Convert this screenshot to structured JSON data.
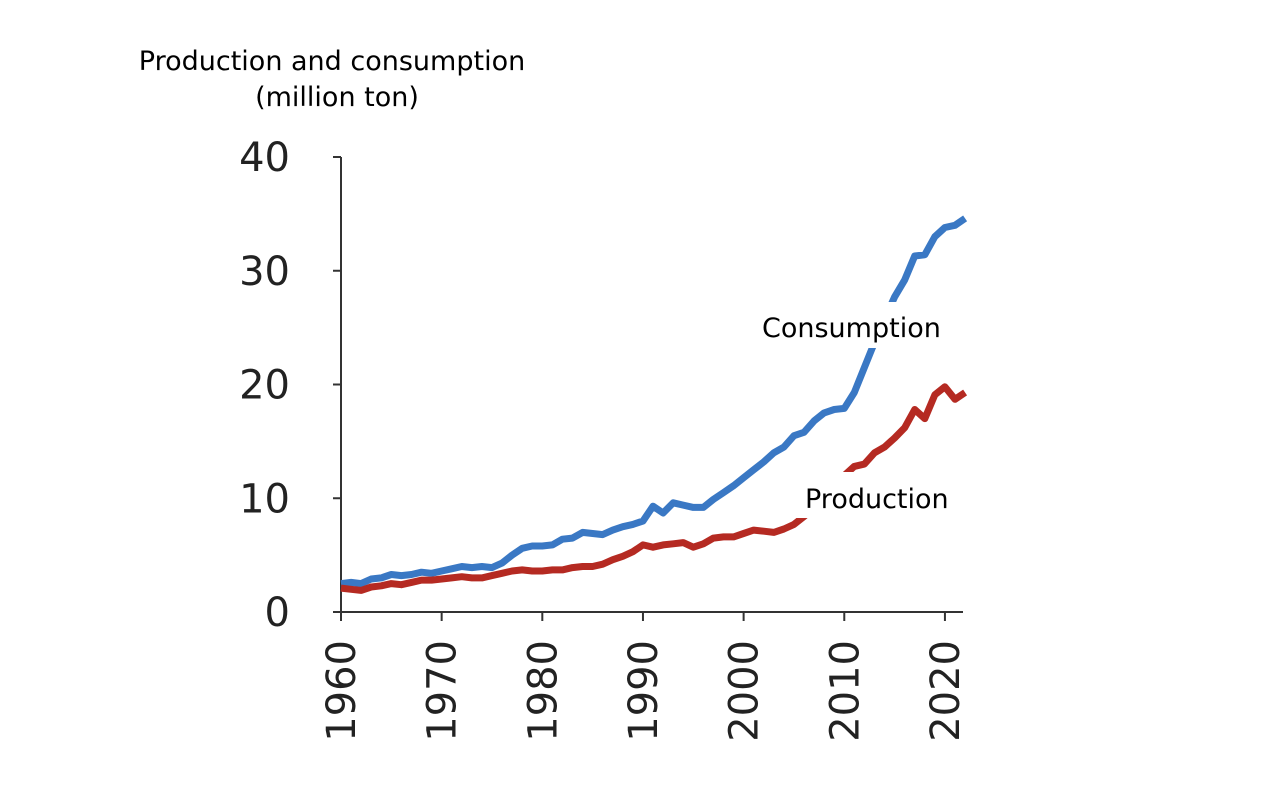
{
  "chart_data": {
    "type": "line",
    "title": "",
    "ylabel_line1": "Production and consumption",
    "ylabel_line2": "(million ton)",
    "xlabel": "",
    "xlim": [
      1960,
      2021
    ],
    "ylim": [
      0,
      40
    ],
    "yticks": [
      "0",
      "10",
      "20",
      "30",
      "40"
    ],
    "xticks": [
      "1960",
      "1970",
      "1980",
      "1990",
      "2000",
      "2010",
      "2020"
    ],
    "grid": false,
    "legend": "inline labels",
    "series": [
      {
        "name": "Consumption",
        "color": "#3a78c4",
        "points": [
          [
            1960,
            2.5
          ],
          [
            1961,
            2.6
          ],
          [
            1962,
            2.5
          ],
          [
            1963,
            2.9
          ],
          [
            1964,
            3.0
          ],
          [
            1965,
            3.3
          ],
          [
            1966,
            3.2
          ],
          [
            1967,
            3.3
          ],
          [
            1968,
            3.5
          ],
          [
            1969,
            3.4
          ],
          [
            1970,
            3.6
          ],
          [
            1971,
            3.8
          ],
          [
            1972,
            4.0
          ],
          [
            1973,
            3.9
          ],
          [
            1974,
            4.0
          ],
          [
            1975,
            3.9
          ],
          [
            1976,
            4.3
          ],
          [
            1977,
            5.0
          ],
          [
            1978,
            5.6
          ],
          [
            1979,
            5.8
          ],
          [
            1980,
            5.8
          ],
          [
            1981,
            5.9
          ],
          [
            1982,
            6.4
          ],
          [
            1983,
            6.5
          ],
          [
            1984,
            7.0
          ],
          [
            1985,
            6.9
          ],
          [
            1986,
            6.8
          ],
          [
            1987,
            7.2
          ],
          [
            1988,
            7.5
          ],
          [
            1989,
            7.7
          ],
          [
            1990,
            8.0
          ],
          [
            1991,
            9.3
          ],
          [
            1992,
            8.7
          ],
          [
            1993,
            9.6
          ],
          [
            1994,
            9.4
          ],
          [
            1995,
            9.2
          ],
          [
            1996,
            9.2
          ],
          [
            1997,
            9.9
          ],
          [
            1998,
            10.5
          ],
          [
            1999,
            11.1
          ],
          [
            2000,
            11.8
          ],
          [
            2001,
            12.5
          ],
          [
            2002,
            13.2
          ],
          [
            2003,
            14.0
          ],
          [
            2004,
            14.5
          ],
          [
            2005,
            15.5
          ],
          [
            2006,
            15.8
          ],
          [
            2007,
            16.8
          ],
          [
            2008,
            17.5
          ],
          [
            2009,
            17.8
          ],
          [
            2010,
            17.9
          ],
          [
            2011,
            19.3
          ],
          [
            2012,
            21.5
          ],
          [
            2013,
            23.7
          ],
          [
            2014,
            25.7
          ],
          [
            2015,
            27.7
          ],
          [
            2016,
            29.2
          ],
          [
            2017,
            31.3
          ],
          [
            2018,
            31.4
          ],
          [
            2019,
            33.0
          ],
          [
            2020,
            33.8
          ],
          [
            2021,
            34.0
          ],
          [
            2022,
            34.6
          ]
        ]
      },
      {
        "name": "Production",
        "color": "#b52a22",
        "points": [
          [
            1960,
            2.1
          ],
          [
            1961,
            2.0
          ],
          [
            1962,
            1.9
          ],
          [
            1963,
            2.2
          ],
          [
            1964,
            2.3
          ],
          [
            1965,
            2.5
          ],
          [
            1966,
            2.4
          ],
          [
            1967,
            2.6
          ],
          [
            1968,
            2.8
          ],
          [
            1969,
            2.8
          ],
          [
            1970,
            2.9
          ],
          [
            1971,
            3.0
          ],
          [
            1972,
            3.1
          ],
          [
            1973,
            3.0
          ],
          [
            1974,
            3.0
          ],
          [
            1975,
            3.2
          ],
          [
            1976,
            3.4
          ],
          [
            1977,
            3.6
          ],
          [
            1978,
            3.7
          ],
          [
            1979,
            3.6
          ],
          [
            1980,
            3.6
          ],
          [
            1981,
            3.7
          ],
          [
            1982,
            3.7
          ],
          [
            1983,
            3.9
          ],
          [
            1984,
            4.0
          ],
          [
            1985,
            4.0
          ],
          [
            1986,
            4.2
          ],
          [
            1987,
            4.6
          ],
          [
            1988,
            4.9
          ],
          [
            1989,
            5.3
          ],
          [
            1990,
            5.9
          ],
          [
            1991,
            5.7
          ],
          [
            1992,
            5.9
          ],
          [
            1993,
            6.0
          ],
          [
            1994,
            6.1
          ],
          [
            1995,
            5.7
          ],
          [
            1996,
            6.0
          ],
          [
            1997,
            6.5
          ],
          [
            1998,
            6.6
          ],
          [
            1999,
            6.6
          ],
          [
            2000,
            6.9
          ],
          [
            2001,
            7.2
          ],
          [
            2002,
            7.1
          ],
          [
            2003,
            7.0
          ],
          [
            2004,
            7.3
          ],
          [
            2005,
            7.7
          ],
          [
            2006,
            8.4
          ],
          [
            2007,
            9.2
          ],
          [
            2008,
            10.0
          ],
          [
            2009,
            10.9
          ],
          [
            2010,
            12.0
          ],
          [
            2011,
            12.8
          ],
          [
            2012,
            13.0
          ],
          [
            2013,
            14.0
          ],
          [
            2014,
            14.5
          ],
          [
            2015,
            15.3
          ],
          [
            2016,
            16.2
          ],
          [
            2017,
            17.8
          ],
          [
            2018,
            17.0
          ],
          [
            2019,
            19.1
          ],
          [
            2020,
            19.8
          ],
          [
            2021,
            18.7
          ],
          [
            2022,
            19.3
          ]
        ]
      }
    ]
  }
}
